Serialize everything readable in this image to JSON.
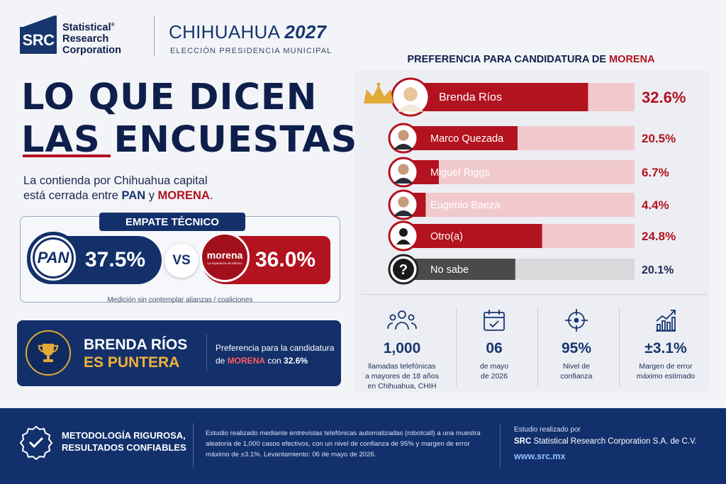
{
  "header": {
    "logo_text": "SRC",
    "brand_line1": "Statistical",
    "brand_line2": "Research",
    "brand_line3": "Corporation",
    "brand_mark": "®",
    "title_city": "CHIHUAHUA",
    "title_year": "2027",
    "subtitle": "ELECCIÓN PRESIDENCIA MUNICIPAL"
  },
  "headline": {
    "line1": "LO QUE DICEN",
    "line2": "LAS ENCUESTAS",
    "intro_1": "La contienda por Chihuahua capital",
    "intro_2": "está cerrada entre ",
    "intro_pan": "PAN",
    "intro_y": " y ",
    "intro_morena": "MORENA",
    "intro_end": "."
  },
  "empate": {
    "label": "EMPATE TÉCNICO",
    "pan_logo": "PAN",
    "pan_value": "37.5%",
    "vs": "VS",
    "morena_logo": "morena",
    "morena_logo_sub": "La esperanza de México",
    "morena_value": "36.0%",
    "note": "Medición sin contemplar alianzas / coaliciones"
  },
  "puntera": {
    "line1": "BRENDA RÍOS",
    "line2": "ES PUNTERA",
    "desc_1": "Preferencia para la candidatura",
    "desc_2": "de ",
    "desc_party": "MORENA",
    "desc_3": " con ",
    "desc_value": "32.6%"
  },
  "chart_title": {
    "prefix": "PREFERENCIA PARA CANDIDATURA DE ",
    "party": "MORENA"
  },
  "chart_data": {
    "type": "bar",
    "orientation": "horizontal",
    "categories": [
      "Brenda Ríos",
      "Marco Quezada",
      "Miguel Riggs",
      "Eugenio Baeza",
      "Otro(a)",
      "No sabe"
    ],
    "values": [
      32.6,
      20.5,
      6.7,
      4.4,
      24.8,
      20.1
    ],
    "value_labels": [
      "32.6%",
      "20.5%",
      "6.7%",
      "4.4%",
      "24.8%",
      "20.1%"
    ],
    "title": "PREFERENCIA PARA CANDIDATURA DE MORENA",
    "colors": {
      "bar": "#b3121f",
      "track": "#f1c9cc",
      "nosabe_bar": "#4a4a4a",
      "nosabe_track": "#d9d9dc",
      "label_red": "#b3121f",
      "label_dark": "#1d2b52"
    },
    "leader_icon": "crown-icon"
  },
  "stats": [
    {
      "icon": "people-icon",
      "value": "1,000",
      "desc": [
        "llamadas telefónicas",
        "a mayores de 18 años",
        "en Chihuahua, CHIH"
      ]
    },
    {
      "icon": "calendar-icon",
      "value": "06",
      "desc": [
        "de mayo",
        "de 2026"
      ]
    },
    {
      "icon": "target-icon",
      "value": "95%",
      "desc": [
        "Nivel de",
        "confianza"
      ]
    },
    {
      "icon": "growth-chart-icon",
      "value": "±3.1%",
      "desc": [
        "Margen de error",
        "máximo estimado"
      ]
    }
  ],
  "footer": {
    "tagline1": "METODOLOGÍA RIGUROSA,",
    "tagline2": "RESULTADOS CONFIABLES",
    "desc": "Estudio realizado mediante entrevistas telefónicas automatizadas (robotcall) a una muestra aleatoria de 1,000 casos efectivos, con un nivel de confianza de 95% y margen de error máximo de ±3.1%. Levantamiento: 06 de mayo de 2026.",
    "by_label": "Estudio realizado por",
    "company_bold": "SRC",
    "company_rest": " Statistical Research Corporation S.A. de C.V.",
    "url": "www.src.mx"
  },
  "colors": {
    "navy": "#13306a",
    "red": "#b3121f",
    "gold": "#e1a935"
  }
}
